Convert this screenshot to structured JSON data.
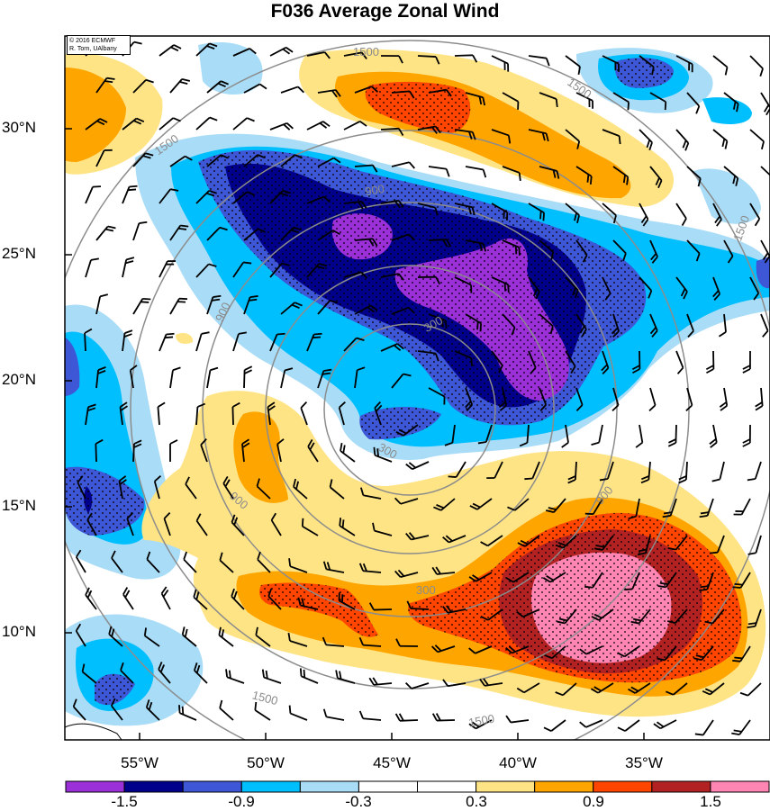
{
  "title": "F036 Average Zonal Wind",
  "credit": {
    "line1": "© 2016 ECMWF",
    "line2": "R. Torn, UAlbany"
  },
  "lat_labels": [
    "30°N",
    "25°N",
    "20°N",
    "15°N",
    "10°N"
  ],
  "lon_labels": [
    "55°W",
    "50°W",
    "45°W",
    "40°W",
    "35°W"
  ],
  "colorbar": {
    "colors": [
      "#9b30d9",
      "#00008b",
      "#3e57d6",
      "#00bfff",
      "#a8dcf7",
      "#ffffff",
      "#ffffff",
      "#ffe485",
      "#ffa500",
      "#ff4500",
      "#b22222",
      "#ff85b3"
    ],
    "tick_labels": [
      "-1.5",
      "-0.9",
      "-0.3",
      "0.3",
      "0.9",
      "1.5"
    ]
  },
  "contour_labels": [
    "1500",
    "1500",
    "1500",
    "1500",
    "1500",
    "1500",
    "900",
    "900",
    "900",
    "900",
    "300",
    "300",
    "300"
  ]
}
